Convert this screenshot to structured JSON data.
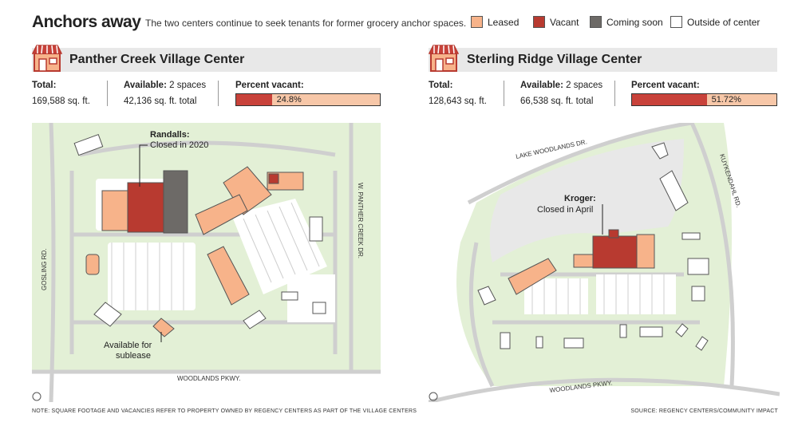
{
  "title": "Anchors away",
  "subtitle": "The two centers continue to seek tenants for former grocery anchor spaces.",
  "legend": [
    {
      "label": "Leased",
      "color": "#f7b38a"
    },
    {
      "label": "Vacant",
      "color": "#b83a30"
    },
    {
      "label": "Coming soon",
      "color": "#6d6a67"
    },
    {
      "label": "Outside of center",
      "color": "#ffffff"
    }
  ],
  "colors": {
    "park": "#e3f0d6",
    "road": "#cfcfcf",
    "leased": "#f7b38a",
    "vacant": "#b83a30",
    "coming": "#6d6a67"
  },
  "left": {
    "name": "Panther Creek Village Center",
    "total_label": "Total:",
    "total_value": "169,588 sq. ft.",
    "available_label": "Available:",
    "available_count": "2 spaces",
    "available_value": "42,136 sq. ft. total",
    "percent_label": "Percent vacant:",
    "percent_text": "24.8%",
    "percent_value": 24.8,
    "callout1_title": "Randalls:",
    "callout1_text": "Closed in 2020",
    "callout2_line1": "Available for",
    "callout2_line2": "sublease",
    "road_south": "WOODLANDS PKWY.",
    "road_west": "GOSLING RD.",
    "road_east": "W. PANTHER CREEK DR."
  },
  "right": {
    "name": "Sterling Ridge Village Center",
    "total_label": "Total:",
    "total_value": "128,643 sq. ft.",
    "available_label": "Available:",
    "available_count": "2 spaces",
    "available_value": "66,538 sq. ft. total",
    "percent_label": "Percent vacant:",
    "percent_text": "51.72%",
    "percent_value": 51.72,
    "callout_title": "Kroger:",
    "callout_text": "Closed in April",
    "road_north": "LAKE WOODLANDS DR.",
    "road_east": "KUYKENDAHL RD.",
    "road_south": "WOODLANDS PKWY."
  },
  "note": "NOTE: SQUARE FOOTAGE AND VACANCIES REFER TO PROPERTY OWNED BY REGENCY CENTERS AS PART OF THE VILLAGE CENTERS",
  "source": "SOURCE: REGENCY CENTERS/COMMUNITY IMPACT"
}
